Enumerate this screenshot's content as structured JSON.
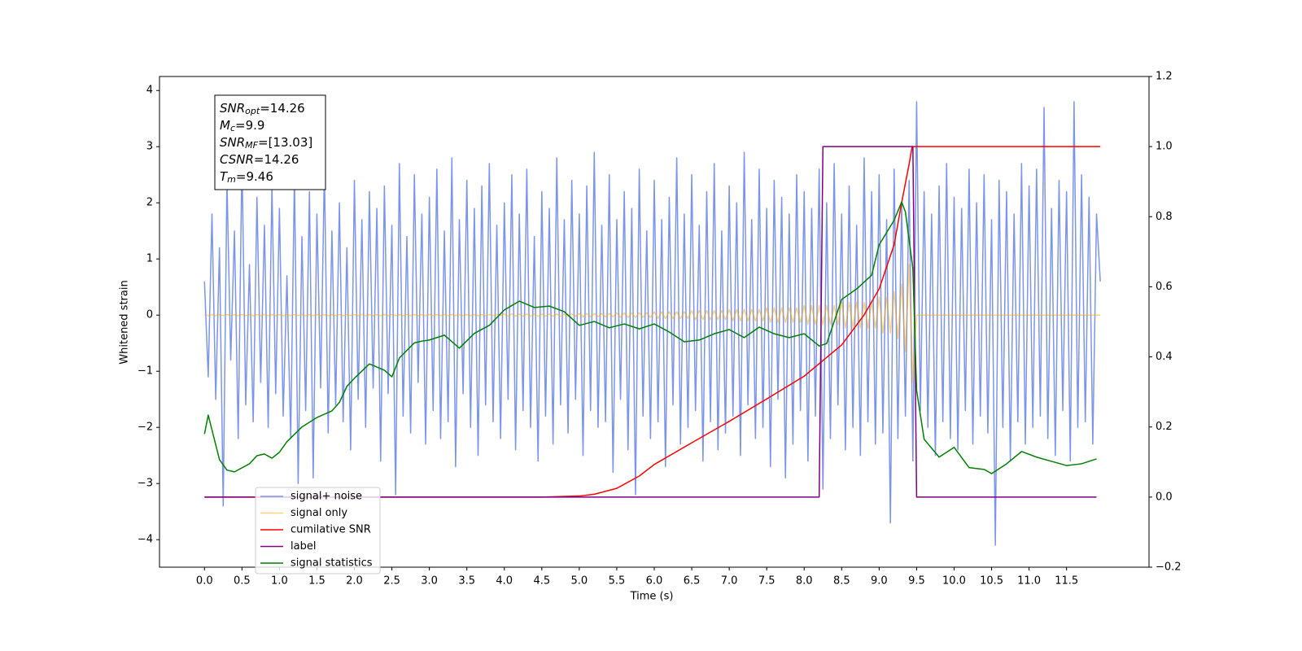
{
  "chart_data": {
    "type": "line",
    "xlabel": "Time (s)",
    "ylabel": "Whitened strain",
    "xlim": [
      -0.6,
      12.6
    ],
    "ylim": [
      -4.49,
      4.25
    ],
    "y2lim": [
      -0.2,
      1.2
    ],
    "xticks": [
      {
        "value": 0,
        "label": "0.0"
      },
      0.5,
      {
        "value": 1,
        "label": "1.0"
      },
      1.5,
      {
        "value": 2,
        "label": "2.0"
      },
      2.5,
      {
        "value": 3,
        "label": "3.0"
      },
      3.5,
      {
        "value": 4,
        "label": "4.0"
      },
      4.5,
      {
        "value": 5,
        "label": "5.0"
      },
      5.5,
      {
        "value": 6,
        "label": "6.0"
      },
      6.5,
      {
        "value": 7,
        "label": "7.0"
      },
      7.5,
      {
        "value": 8,
        "label": "8.0"
      },
      8.5,
      {
        "value": 9,
        "label": "9.0"
      },
      9.5,
      {
        "value": 10,
        "label": "10.0"
      },
      10.5,
      {
        "value": 11,
        "label": "11.0"
      },
      11.5
    ],
    "yticks": [
      {
        "value": -4,
        "label": "−4"
      },
      {
        "value": -3,
        "label": "−3"
      },
      {
        "value": -2,
        "label": "−2"
      },
      {
        "value": -1,
        "label": "−1"
      },
      0,
      1,
      2,
      3,
      4
    ],
    "y2ticks": [
      {
        "value": -0.2,
        "label": "−0.2"
      },
      {
        "value": 0,
        "label": "0.0"
      },
      0.2,
      0.4,
      0.6,
      0.8,
      {
        "value": 1,
        "label": "1.0"
      },
      1.2
    ],
    "legend": "lower left",
    "annotation": [
      {
        "symbol": "SNR",
        "sub": "opt",
        "text": "=14.26"
      },
      {
        "symbol": "M",
        "sub": "c",
        "text": "=9.9"
      },
      {
        "symbol": "SNR",
        "sub": "MF",
        "text": "=[13.03]"
      },
      {
        "symbol": "CSNR",
        "text": "=14.26"
      },
      {
        "symbol": "T",
        "sub": "m",
        "text": "=9.46"
      }
    ],
    "x": [
      0,
      0.05,
      0.1,
      0.15,
      0.2,
      0.25,
      0.3,
      0.35,
      0.4,
      0.45,
      0.5,
      0.55,
      0.6,
      0.65,
      0.7,
      0.75,
      0.8,
      0.85,
      0.9,
      0.95,
      1,
      1.05,
      1.1,
      1.15,
      1.2,
      1.25,
      1.3,
      1.35,
      1.4,
      1.45,
      1.5,
      1.55,
      1.6,
      1.65,
      1.7,
      1.75,
      1.8,
      1.85,
      1.9,
      1.95,
      2,
      2.05,
      2.1,
      2.15,
      2.2,
      2.25,
      2.3,
      2.35,
      2.4,
      2.45,
      2.5,
      2.55,
      2.6,
      2.65,
      2.7,
      2.75,
      2.8,
      2.85,
      2.9,
      2.95,
      3,
      3.05,
      3.1,
      3.15,
      3.2,
      3.25,
      3.3,
      3.35,
      3.4,
      3.45,
      3.5,
      3.55,
      3.6,
      3.65,
      3.7,
      3.75,
      3.8,
      3.85,
      3.9,
      3.95,
      4,
      4.05,
      4.1,
      4.15,
      4.2,
      4.25,
      4.3,
      4.35,
      4.4,
      4.45,
      4.5,
      4.55,
      4.6,
      4.65,
      4.7,
      4.75,
      4.8,
      4.85,
      4.9,
      4.95,
      5,
      5.05,
      5.1,
      5.15,
      5.2,
      5.25,
      5.3,
      5.35,
      5.4,
      5.45,
      5.5,
      5.55,
      5.6,
      5.65,
      5.7,
      5.75,
      5.8,
      5.85,
      5.9,
      5.95,
      6,
      6.05,
      6.1,
      6.15,
      6.2,
      6.25,
      6.3,
      6.35,
      6.4,
      6.45,
      6.5,
      6.55,
      6.6,
      6.65,
      6.7,
      6.75,
      6.8,
      6.85,
      6.9,
      6.95,
      7,
      7.05,
      7.1,
      7.15,
      7.2,
      7.25,
      7.3,
      7.35,
      7.4,
      7.45,
      7.5,
      7.55,
      7.6,
      7.65,
      7.7,
      7.75,
      7.8,
      7.85,
      7.9,
      7.95,
      8,
      8.05,
      8.1,
      8.15,
      8.2,
      8.25,
      8.3,
      8.35,
      8.4,
      8.45,
      8.5,
      8.55,
      8.6,
      8.65,
      8.7,
      8.75,
      8.8,
      8.85,
      8.9,
      8.95,
      9,
      9.05,
      9.1,
      9.15,
      9.2,
      9.25,
      9.3,
      9.35,
      9.4,
      9.45,
      9.5,
      9.55,
      9.6,
      9.65,
      9.7,
      9.75,
      9.8,
      9.85,
      9.9,
      9.95,
      10,
      10.05,
      10.1,
      10.15,
      10.2,
      10.25,
      10.3,
      10.35,
      10.4,
      10.45,
      10.5,
      10.55,
      10.6,
      10.65,
      10.7,
      10.75,
      10.8,
      10.85,
      10.9,
      10.95,
      11,
      11.05,
      11.1,
      11.15,
      11.2,
      11.25,
      11.3,
      11.35,
      11.4,
      11.45,
      11.5,
      11.55,
      11.6,
      11.65,
      11.7,
      11.75,
      11.8,
      11.85,
      11.9,
      11.95
    ],
    "series": [
      {
        "name": "signal+ noise",
        "color": "#6f8ae6",
        "values": [
          0.6,
          -1.1,
          1.8,
          -1.5,
          1.2,
          -3.4,
          2.4,
          -0.8,
          1.5,
          -2.2,
          2.8,
          -1.6,
          0.9,
          -1.9,
          2.1,
          -1.2,
          1.6,
          -2.0,
          2.3,
          -1.4,
          1.9,
          -1.8,
          0.7,
          -2.2,
          2.5,
          -3.0,
          1.4,
          -1.7,
          2.2,
          -2.9,
          1.8,
          -1.3,
          2.6,
          -2.1,
          1.5,
          -1.6,
          2.0,
          -1.9,
          1.2,
          -2.4,
          2.4,
          -1.5,
          1.7,
          -2.0,
          2.2,
          -1.3,
          1.9,
          -2.6,
          2.3,
          -1.4,
          1.6,
          -3.2,
          2.7,
          -1.8,
          1.4,
          -2.1,
          2.5,
          -1.2,
          1.8,
          -2.3,
          2.1,
          -1.7,
          2.6,
          -2.2,
          1.5,
          -1.9,
          2.8,
          -2.7,
          1.7,
          -1.4,
          2.4,
          -2.0,
          1.9,
          -2.5,
          2.3,
          -1.6,
          2.7,
          -1.9,
          1.6,
          -2.2,
          2.0,
          -1.5,
          2.5,
          -2.4,
          1.8,
          -1.7,
          2.6,
          -2.0,
          1.4,
          -2.6,
          2.2,
          -1.8,
          1.9,
          -2.3,
          2.8,
          -1.6,
          1.7,
          -2.1,
          2.4,
          -1.5,
          1.8,
          -2.5,
          2.3,
          -1.7,
          2.9,
          -2.0,
          1.6,
          -1.9,
          2.5,
          -2.8,
          1.7,
          -1.5,
          2.2,
          -2.4,
          1.9,
          -3.2,
          2.6,
          -1.8,
          1.5,
          -2.2,
          2.4,
          -1.9,
          1.7,
          -2.7,
          2.1,
          -1.6,
          2.8,
          -2.3,
          1.8,
          -2.0,
          2.5,
          -1.7,
          1.6,
          -2.6,
          2.2,
          -1.9,
          2.7,
          -2.4,
          1.5,
          -2.1,
          2.3,
          -1.8,
          2.0,
          -2.5,
          2.9,
          -1.6,
          1.7,
          -2.2,
          2.6,
          -2.0,
          1.9,
          -2.7,
          2.4,
          -1.5,
          2.1,
          -2.9,
          1.8,
          -2.3,
          2.5,
          -1.7,
          2.2,
          -2.6,
          1.9,
          -1.8,
          2.6,
          -3.1,
          2.0,
          -2.2,
          2.7,
          -1.6,
          1.8,
          -2.4,
          2.3,
          -2.0,
          1.6,
          -2.5,
          2.8,
          -1.9,
          2.2,
          -2.3,
          2.5,
          -2.1,
          1.7,
          -3.7,
          2.6,
          -2.2,
          2.0,
          -1.8,
          2.4,
          -2.6,
          3.8,
          -1.7,
          2.2,
          -2.0,
          1.8,
          -2.5,
          2.3,
          -1.9,
          2.7,
          -2.2,
          2.1,
          -2.4,
          1.9,
          -1.7,
          2.6,
          -2.3,
          2.0,
          -1.8,
          2.5,
          -2.1,
          1.7,
          -4.1,
          2.4,
          -2.0,
          2.2,
          -2.6,
          1.8,
          -1.9,
          2.7,
          -2.3,
          2.3,
          -2.0,
          2.6,
          -1.8,
          3.7,
          -2.2,
          1.9,
          -2.5,
          2.4,
          -1.7,
          2.2,
          -2.6,
          3.8,
          -2.0,
          2.5,
          -1.9,
          2.1,
          -2.3,
          1.8,
          0.6
        ]
      },
      {
        "name": "signal only",
        "color": "#ffa500",
        "values": [
          0.01,
          -0.01,
          0.01,
          -0.01,
          0.01,
          -0.01,
          0.01,
          -0.01,
          0.01,
          -0.01,
          0.01,
          -0.01,
          0.01,
          -0.01,
          0.01,
          -0.01,
          0.01,
          -0.01,
          0.01,
          -0.01,
          0.01,
          -0.01,
          0.01,
          -0.01,
          0.01,
          -0.01,
          0.01,
          -0.01,
          0.01,
          -0.01,
          0.01,
          -0.01,
          0.01,
          -0.01,
          0.01,
          -0.01,
          0.01,
          -0.01,
          0.01,
          -0.01,
          0.01,
          -0.01,
          0.01,
          -0.01,
          0.01,
          -0.01,
          0.01,
          -0.01,
          0.01,
          -0.01,
          0.01,
          -0.01,
          0.01,
          -0.01,
          0.01,
          -0.01,
          0.01,
          -0.01,
          0.01,
          -0.01,
          0.01,
          -0.01,
          0.01,
          -0.01,
          0.01,
          -0.01,
          0.01,
          -0.01,
          0.01,
          -0.01,
          0.01,
          -0.01,
          0.01,
          -0.01,
          0.01,
          -0.01,
          0.01,
          -0.01,
          0.01,
          -0.01,
          0.02,
          -0.02,
          0.02,
          -0.02,
          0.02,
          -0.02,
          0.02,
          -0.02,
          0.02,
          -0.02,
          0.02,
          -0.02,
          0.02,
          -0.02,
          0.02,
          -0.02,
          0.02,
          -0.02,
          0.02,
          -0.02,
          0.03,
          -0.03,
          0.03,
          -0.03,
          0.03,
          -0.03,
          0.03,
          -0.03,
          0.03,
          -0.03,
          0.04,
          -0.04,
          0.04,
          -0.04,
          0.04,
          -0.04,
          0.04,
          -0.04,
          0.04,
          -0.04,
          0.06,
          -0.06,
          0.06,
          -0.06,
          0.06,
          -0.06,
          0.06,
          -0.06,
          0.06,
          -0.06,
          0.08,
          -0.08,
          0.08,
          -0.08,
          0.08,
          -0.08,
          0.08,
          -0.08,
          0.08,
          -0.08,
          0.1,
          -0.1,
          0.1,
          -0.1,
          0.1,
          -0.1,
          0.1,
          -0.1,
          0.1,
          -0.1,
          0.13,
          -0.13,
          0.13,
          -0.13,
          0.13,
          -0.13,
          0.13,
          -0.13,
          0.13,
          -0.13,
          0.17,
          -0.17,
          0.17,
          -0.17,
          0.17,
          -0.17,
          0.17,
          -0.17,
          0.17,
          -0.17,
          0.23,
          -0.23,
          0.23,
          -0.23,
          0.23,
          -0.23,
          0.23,
          -0.23,
          0.23,
          -0.23,
          0.32,
          -0.32,
          0.32,
          -0.32,
          0.42,
          -0.42,
          0.55,
          -0.65,
          0.9,
          -1.2,
          0,
          0,
          0,
          0,
          0,
          0,
          0,
          0,
          0,
          0,
          0,
          0,
          0,
          0,
          0,
          0,
          0,
          0,
          0,
          0,
          0,
          0,
          0,
          0,
          0,
          0,
          0,
          0,
          0,
          0,
          0,
          0,
          0,
          0,
          0,
          0,
          0,
          0,
          0,
          0,
          0,
          0,
          0,
          0,
          0,
          0,
          0,
          0,
          0,
          0
        ]
      },
      {
        "name": "cumilative SNR",
        "color": "#ff0000",
        "axis": "y2",
        "x": [
          0,
          4.5,
          5.0,
          5.2,
          5.5,
          5.8,
          6.0,
          6.5,
          7.0,
          7.5,
          8.0,
          8.5,
          8.8,
          9.0,
          9.2,
          9.3,
          9.4,
          9.44,
          9.46,
          10,
          11,
          11.95
        ],
        "values": [
          0,
          0,
          0.003,
          0.008,
          0.025,
          0.06,
          0.093,
          0.155,
          0.216,
          0.28,
          0.345,
          0.434,
          0.52,
          0.594,
          0.72,
          0.84,
          0.95,
          1.0,
          1.0,
          1.0,
          1.0,
          1.0
        ]
      },
      {
        "name": "label",
        "color": "#800080",
        "axis": "y2",
        "x": [
          0,
          8.2,
          8.25,
          9.45,
          9.5,
          11.9
        ],
        "values": [
          0,
          0,
          1,
          1,
          0,
          0
        ]
      },
      {
        "name": "signal statistics",
        "color": "#008000",
        "axis": "y2",
        "x": [
          0,
          0.05,
          0.2,
          0.3,
          0.4,
          0.6,
          0.7,
          0.8,
          0.9,
          1.0,
          1.1,
          1.3,
          1.5,
          1.7,
          1.8,
          1.9,
          2.0,
          2.2,
          2.4,
          2.5,
          2.6,
          2.8,
          2.9,
          3.0,
          3.2,
          3.4,
          3.6,
          3.8,
          4.0,
          4.2,
          4.4,
          4.6,
          4.8,
          5.0,
          5.2,
          5.4,
          5.6,
          5.8,
          6.0,
          6.2,
          6.4,
          6.6,
          6.8,
          7.0,
          7.2,
          7.4,
          7.6,
          7.8,
          8.0,
          8.2,
          8.3,
          8.5,
          8.7,
          8.9,
          9.0,
          9.2,
          9.3,
          9.35,
          9.45,
          9.5,
          9.6,
          9.8,
          10.0,
          10.2,
          10.4,
          10.5,
          10.7,
          10.9,
          11.1,
          11.3,
          11.5,
          11.7,
          11.9
        ],
        "values": [
          0.18,
          0.234,
          0.107,
          0.077,
          0.072,
          0.095,
          0.118,
          0.123,
          0.111,
          0.128,
          0.158,
          0.2,
          0.227,
          0.246,
          0.27,
          0.316,
          0.339,
          0.38,
          0.362,
          0.343,
          0.397,
          0.44,
          0.445,
          0.448,
          0.462,
          0.425,
          0.467,
          0.49,
          0.534,
          0.559,
          0.541,
          0.545,
          0.529,
          0.49,
          0.501,
          0.483,
          0.494,
          0.48,
          0.494,
          0.471,
          0.443,
          0.448,
          0.466,
          0.478,
          0.455,
          0.485,
          0.466,
          0.455,
          0.466,
          0.431,
          0.438,
          0.564,
          0.594,
          0.633,
          0.72,
          0.79,
          0.842,
          0.814,
          0.652,
          0.304,
          0.165,
          0.114,
          0.142,
          0.084,
          0.079,
          0.067,
          0.095,
          0.13,
          0.114,
          0.102,
          0.09,
          0.095,
          0.109
        ]
      }
    ]
  }
}
